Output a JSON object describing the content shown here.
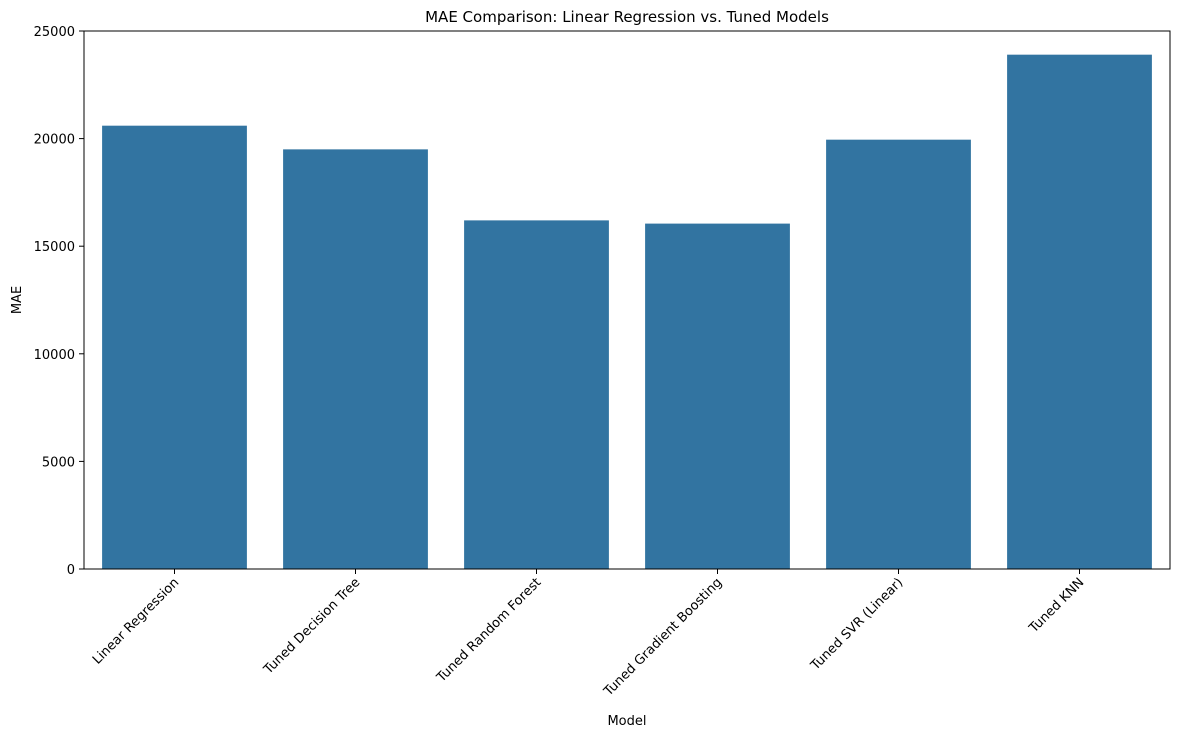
{
  "chart_data": {
    "type": "bar",
    "title": "MAE Comparison: Linear Regression vs. Tuned Models",
    "xlabel": "Model",
    "ylabel": "MAE",
    "categories": [
      "Linear Regression",
      "Tuned Decision Tree",
      "Tuned Random Forest",
      "Tuned Gradient Boosting",
      "Tuned SVR (Linear)",
      "Tuned KNN"
    ],
    "values": [
      20600,
      19500,
      16200,
      16050,
      19950,
      23900
    ],
    "ylim": [
      0,
      25000
    ],
    "yticks": [
      0,
      5000,
      10000,
      15000,
      20000,
      25000
    ],
    "bar_color": "#3274a1",
    "grid": false,
    "legend": "none",
    "x_tick_rotation_deg": 45
  }
}
